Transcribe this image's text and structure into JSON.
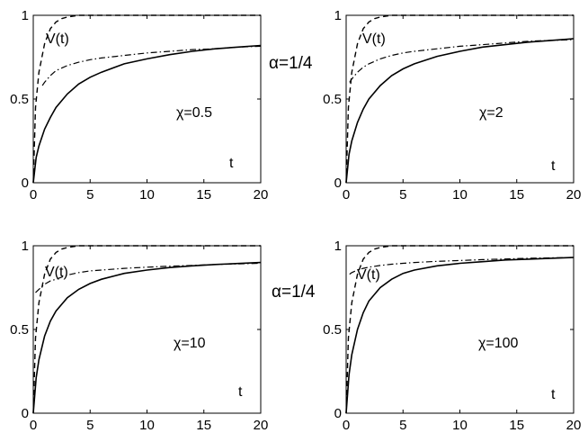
{
  "alpha_labels": [
    "α=1/4",
    "α=1/4"
  ],
  "chart_data": [
    {
      "type": "line",
      "xlim": [
        0,
        20
      ],
      "ylim": [
        0,
        1
      ],
      "xticks": [
        0,
        5,
        10,
        15,
        20
      ],
      "yticks": [
        0,
        0.5,
        1
      ],
      "xtick_labels": [
        "0",
        "5",
        "10",
        "15",
        "20"
      ],
      "ytick_labels": [
        "0",
        "0.5",
        "1"
      ],
      "annotations": {
        "param": "χ=0.5",
        "tlabel": "t",
        "vlabel": "V(t)"
      },
      "series": [
        {
          "style": "solid",
          "x": [
            0,
            0.25,
            0.5,
            1,
            1.5,
            2,
            3,
            4,
            5,
            6,
            8,
            10,
            12,
            14,
            16,
            18,
            20
          ],
          "y": [
            0,
            0.15,
            0.22,
            0.32,
            0.39,
            0.45,
            0.53,
            0.59,
            0.63,
            0.66,
            0.71,
            0.74,
            0.765,
            0.785,
            0.8,
            0.81,
            0.82
          ]
        },
        {
          "style": "dashed",
          "x": [
            0,
            0.2,
            0.5,
            1,
            1.5,
            2,
            2.5,
            3,
            4,
            6,
            20
          ],
          "y": [
            0,
            0.45,
            0.66,
            0.83,
            0.92,
            0.96,
            0.98,
            0.99,
            1.0,
            1.0,
            1.0
          ]
        },
        {
          "style": "dashdot",
          "x": [
            0.8,
            1,
            1.5,
            2,
            3,
            4,
            5,
            6,
            8,
            10,
            12,
            14,
            16,
            18,
            20
          ],
          "y": [
            0.58,
            0.6,
            0.64,
            0.67,
            0.7,
            0.72,
            0.735,
            0.745,
            0.76,
            0.775,
            0.785,
            0.795,
            0.8,
            0.81,
            0.815
          ]
        }
      ]
    },
    {
      "type": "line",
      "xlim": [
        0,
        20
      ],
      "ylim": [
        0,
        1
      ],
      "xticks": [
        0,
        5,
        10,
        15,
        20
      ],
      "yticks": [
        0,
        0.5,
        1
      ],
      "xtick_labels": [
        "0",
        "5",
        "10",
        "15",
        "20"
      ],
      "ytick_labels": [
        "0",
        "0.5",
        "1"
      ],
      "annotations": {
        "param": "χ=2",
        "tlabel": "t",
        "vlabel": "V(t)"
      },
      "series": [
        {
          "style": "solid",
          "x": [
            0,
            0.25,
            0.5,
            1,
            1.5,
            2,
            3,
            4,
            5,
            6,
            8,
            10,
            12,
            14,
            16,
            18,
            20
          ],
          "y": [
            0,
            0.17,
            0.25,
            0.36,
            0.44,
            0.5,
            0.58,
            0.64,
            0.68,
            0.71,
            0.755,
            0.785,
            0.81,
            0.825,
            0.84,
            0.85,
            0.86
          ]
        },
        {
          "style": "dashed",
          "x": [
            0,
            0.2,
            0.5,
            1,
            1.5,
            2,
            2.5,
            3,
            4,
            6,
            20
          ],
          "y": [
            0,
            0.45,
            0.66,
            0.83,
            0.92,
            0.96,
            0.98,
            0.99,
            1.0,
            1.0,
            1.0
          ]
        },
        {
          "style": "dashdot",
          "x": [
            0.3,
            0.5,
            1,
            1.5,
            2,
            3,
            4,
            5,
            6,
            8,
            10,
            12,
            14,
            16,
            18,
            20
          ],
          "y": [
            0.6,
            0.62,
            0.66,
            0.69,
            0.71,
            0.74,
            0.76,
            0.775,
            0.785,
            0.8,
            0.815,
            0.825,
            0.835,
            0.845,
            0.85,
            0.855
          ]
        }
      ]
    },
    {
      "type": "line",
      "xlim": [
        0,
        20
      ],
      "ylim": [
        0,
        1
      ],
      "xticks": [
        0,
        5,
        10,
        15,
        20
      ],
      "yticks": [
        0,
        0.5,
        1
      ],
      "xtick_labels": [
        "0",
        "5",
        "10",
        "15",
        "20"
      ],
      "ytick_labels": [
        "0",
        "0.5",
        "1"
      ],
      "annotations": {
        "param": "χ=10",
        "tlabel": "t",
        "vlabel": "V(t)"
      },
      "series": [
        {
          "style": "solid",
          "x": [
            0,
            0.25,
            0.5,
            1,
            1.5,
            2,
            3,
            4,
            5,
            6,
            8,
            10,
            12,
            14,
            16,
            18,
            20
          ],
          "y": [
            0,
            0.21,
            0.32,
            0.46,
            0.55,
            0.61,
            0.69,
            0.74,
            0.775,
            0.8,
            0.835,
            0.855,
            0.87,
            0.88,
            0.888,
            0.894,
            0.9
          ]
        },
        {
          "style": "dashed",
          "x": [
            0,
            0.2,
            0.5,
            1,
            1.5,
            2,
            2.5,
            3,
            4,
            6,
            20
          ],
          "y": [
            0,
            0.45,
            0.66,
            0.83,
            0.92,
            0.96,
            0.98,
            0.99,
            1.0,
            1.0,
            1.0
          ]
        },
        {
          "style": "dashdot",
          "x": [
            0.2,
            0.5,
            1,
            1.5,
            2,
            3,
            4,
            5,
            6,
            8,
            10,
            12,
            14,
            16,
            18,
            20
          ],
          "y": [
            0.72,
            0.74,
            0.77,
            0.79,
            0.8,
            0.825,
            0.84,
            0.85,
            0.855,
            0.865,
            0.872,
            0.878,
            0.883,
            0.888,
            0.892,
            0.895
          ]
        }
      ]
    },
    {
      "type": "line",
      "xlim": [
        0,
        20
      ],
      "ylim": [
        0,
        1
      ],
      "xticks": [
        0,
        5,
        10,
        15,
        20
      ],
      "yticks": [
        0,
        0.5,
        1
      ],
      "xtick_labels": [
        "0",
        "5",
        "10",
        "15",
        "20"
      ],
      "ytick_labels": [
        "0",
        "0.5",
        "1"
      ],
      "annotations": {
        "param": "χ=100",
        "tlabel": "t",
        "vlabel": "V(t)"
      },
      "series": [
        {
          "style": "solid",
          "x": [
            0,
            0.25,
            0.5,
            1,
            1.5,
            2,
            3,
            4,
            5,
            6,
            8,
            10,
            12,
            14,
            16,
            18,
            20
          ],
          "y": [
            0,
            0.23,
            0.35,
            0.5,
            0.6,
            0.67,
            0.75,
            0.8,
            0.835,
            0.855,
            0.88,
            0.895,
            0.905,
            0.915,
            0.92,
            0.925,
            0.93
          ]
        },
        {
          "style": "dashed",
          "x": [
            0,
            0.2,
            0.5,
            1,
            1.5,
            2,
            2.5,
            3,
            4,
            6,
            20
          ],
          "y": [
            0,
            0.45,
            0.66,
            0.83,
            0.92,
            0.96,
            0.98,
            0.99,
            1.0,
            1.0,
            1.0
          ]
        },
        {
          "style": "dashdot",
          "x": [
            0.3,
            0.5,
            1,
            1.5,
            2,
            3,
            4,
            5,
            6,
            8,
            10,
            12,
            14,
            16,
            18,
            20
          ],
          "y": [
            0.83,
            0.84,
            0.855,
            0.865,
            0.872,
            0.882,
            0.89,
            0.895,
            0.9,
            0.907,
            0.912,
            0.917,
            0.921,
            0.925,
            0.928,
            0.93
          ]
        }
      ]
    }
  ]
}
